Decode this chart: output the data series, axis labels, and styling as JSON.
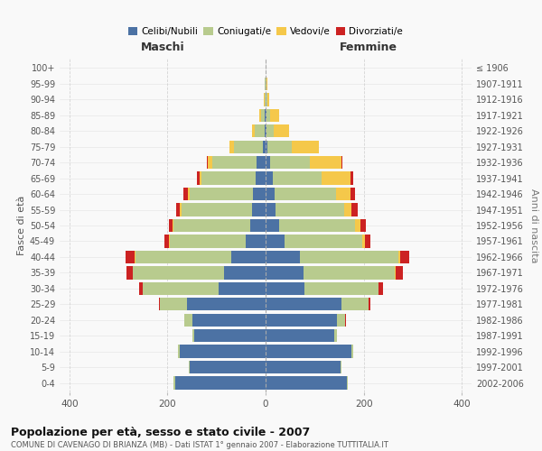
{
  "age_groups": [
    "0-4",
    "5-9",
    "10-14",
    "15-19",
    "20-24",
    "25-29",
    "30-34",
    "35-39",
    "40-44",
    "45-49",
    "50-54",
    "55-59",
    "60-64",
    "65-69",
    "70-74",
    "75-79",
    "80-84",
    "85-89",
    "90-94",
    "95-99",
    "100+"
  ],
  "birth_years": [
    "2002-2006",
    "1997-2001",
    "1992-1996",
    "1987-1991",
    "1982-1986",
    "1977-1981",
    "1972-1976",
    "1967-1971",
    "1962-1966",
    "1957-1961",
    "1952-1956",
    "1947-1951",
    "1942-1946",
    "1937-1941",
    "1932-1936",
    "1927-1931",
    "1922-1926",
    "1917-1921",
    "1912-1916",
    "1907-1911",
    "≤ 1906"
  ],
  "maschi": {
    "celibi": [
      185,
      155,
      175,
      145,
      150,
      160,
      95,
      85,
      70,
      40,
      32,
      27,
      25,
      20,
      18,
      5,
      2,
      1,
      0,
      0,
      0
    ],
    "coniugati": [
      2,
      2,
      3,
      5,
      15,
      55,
      155,
      185,
      195,
      155,
      155,
      145,
      130,
      110,
      90,
      60,
      20,
      8,
      2,
      1,
      0
    ],
    "vedovi": [
      0,
      0,
      0,
      0,
      0,
      0,
      0,
      1,
      2,
      2,
      3,
      3,
      4,
      5,
      10,
      8,
      5,
      3,
      1,
      0,
      0
    ],
    "divorziati": [
      0,
      0,
      0,
      0,
      1,
      3,
      8,
      12,
      18,
      10,
      8,
      8,
      8,
      5,
      2,
      0,
      0,
      0,
      0,
      0,
      0
    ]
  },
  "femmine": {
    "nubili": [
      165,
      152,
      175,
      140,
      145,
      155,
      80,
      78,
      70,
      38,
      28,
      20,
      18,
      14,
      10,
      4,
      2,
      1,
      0,
      0,
      0
    ],
    "coniugate": [
      2,
      2,
      4,
      5,
      18,
      55,
      150,
      185,
      200,
      160,
      155,
      140,
      125,
      100,
      80,
      50,
      15,
      8,
      3,
      1,
      0
    ],
    "vedove": [
      0,
      0,
      0,
      0,
      0,
      0,
      1,
      2,
      5,
      5,
      10,
      15,
      30,
      60,
      65,
      55,
      30,
      18,
      5,
      2,
      0
    ],
    "divorziate": [
      0,
      0,
      0,
      0,
      1,
      3,
      8,
      15,
      18,
      10,
      12,
      12,
      10,
      5,
      2,
      0,
      0,
      0,
      0,
      0,
      0
    ]
  },
  "colors": {
    "celibi": "#4c72a4",
    "coniugati": "#b8cb8e",
    "vedovi": "#f5c84a",
    "divorziati": "#cc2222"
  },
  "xlim": 420,
  "title": "Popolazione per età, sesso e stato civile - 2007",
  "subtitle": "COMUNE DI CAVENAGO DI BRIANZA (MB) - Dati ISTAT 1° gennaio 2007 - Elaborazione TUTTITALIA.IT",
  "ylabel": "Fasce di età",
  "ylabel2": "Anni di nascita",
  "xlabel_maschi": "Maschi",
  "xlabel_femmine": "Femmine",
  "legend_labels": [
    "Celibi/Nubili",
    "Coniugati/e",
    "Vedovi/e",
    "Divorziati/e"
  ],
  "bg_color": "#f9f9f9",
  "grid_color": "#cccccc"
}
